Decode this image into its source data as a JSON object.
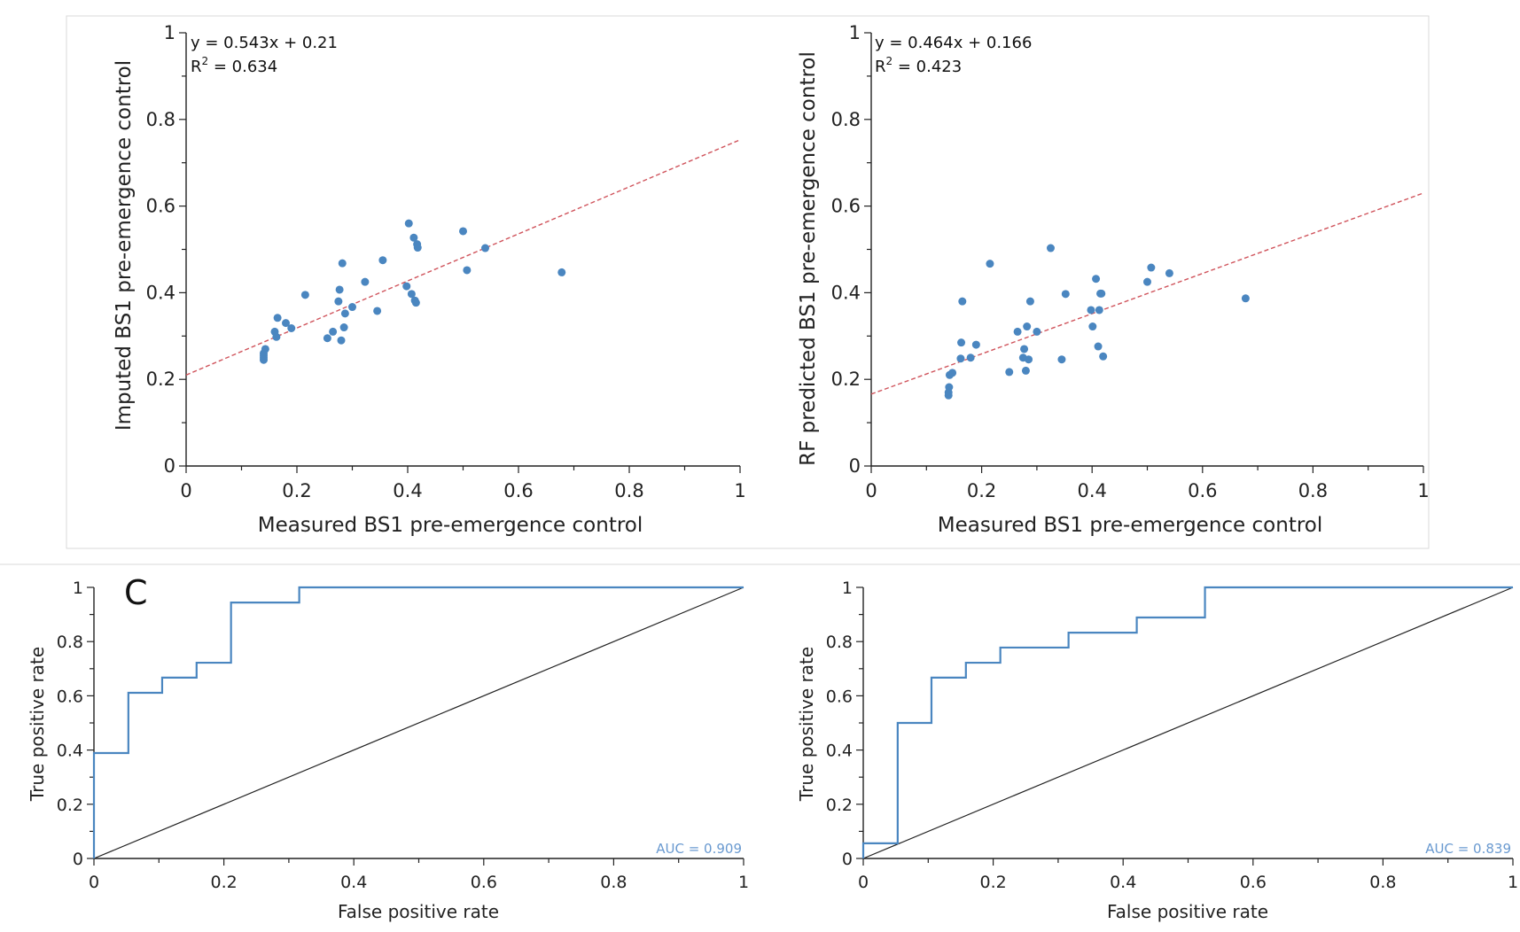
{
  "colors": {
    "points": "#4a86c0",
    "fit_line": "#d0545c",
    "roc": "#4a86c0",
    "diagonal": "#222222",
    "auc_text": "#6a9ad0",
    "frame": "#d9d9d9"
  },
  "panel_label": "C",
  "chart_data": [
    {
      "type": "scatter",
      "xlabel": "Measured BS1 pre-emergence control",
      "ylabel": "Imputed BS1 pre-emergence control",
      "xlim": [
        0,
        1
      ],
      "ylim": [
        0,
        1
      ],
      "x_ticks": [
        "0",
        "0.2",
        "0.4",
        "0.6",
        "0.8",
        "1"
      ],
      "y_ticks": [
        "0",
        "0.2",
        "0.4",
        "0.6",
        "0.8",
        "1"
      ],
      "equation": "y = 0.543x + 0.21",
      "r2_prefix": "R",
      "r2_sup": "2",
      "r2_value": " = 0.634",
      "fit": {
        "slope": 0.543,
        "intercept": 0.21
      },
      "points": [
        [
          0.14,
          0.245
        ],
        [
          0.14,
          0.25
        ],
        [
          0.14,
          0.255
        ],
        [
          0.14,
          0.26
        ],
        [
          0.143,
          0.27
        ],
        [
          0.16,
          0.31
        ],
        [
          0.163,
          0.298
        ],
        [
          0.165,
          0.342
        ],
        [
          0.18,
          0.33
        ],
        [
          0.19,
          0.318
        ],
        [
          0.215,
          0.395
        ],
        [
          0.255,
          0.295
        ],
        [
          0.265,
          0.31
        ],
        [
          0.275,
          0.38
        ],
        [
          0.277,
          0.407
        ],
        [
          0.28,
          0.29
        ],
        [
          0.282,
          0.468
        ],
        [
          0.285,
          0.32
        ],
        [
          0.287,
          0.352
        ],
        [
          0.3,
          0.367
        ],
        [
          0.323,
          0.425
        ],
        [
          0.345,
          0.358
        ],
        [
          0.355,
          0.475
        ],
        [
          0.398,
          0.415
        ],
        [
          0.402,
          0.56
        ],
        [
          0.407,
          0.397
        ],
        [
          0.411,
          0.527
        ],
        [
          0.413,
          0.382
        ],
        [
          0.415,
          0.377
        ],
        [
          0.417,
          0.512
        ],
        [
          0.418,
          0.504
        ],
        [
          0.5,
          0.542
        ],
        [
          0.507,
          0.452
        ],
        [
          0.54,
          0.503
        ],
        [
          0.678,
          0.447
        ]
      ]
    },
    {
      "type": "scatter",
      "xlabel": "Measured BS1 pre-emergence control",
      "ylabel": "RF predicted BS1 pre-emergence control",
      "xlim": [
        0,
        1
      ],
      "ylim": [
        0,
        1
      ],
      "x_ticks": [
        "0",
        "0.2",
        "0.4",
        "0.6",
        "0.8",
        "1"
      ],
      "y_ticks": [
        "0",
        "0.2",
        "0.4",
        "0.6",
        "0.8",
        "1"
      ],
      "equation": "y = 0.464x + 0.166",
      "r2_prefix": "R",
      "r2_sup": "2",
      "r2_value": " = 0.423",
      "fit": {
        "slope": 0.464,
        "intercept": 0.166
      },
      "points": [
        [
          0.14,
          0.163
        ],
        [
          0.14,
          0.17
        ],
        [
          0.141,
          0.182
        ],
        [
          0.142,
          0.21
        ],
        [
          0.147,
          0.215
        ],
        [
          0.162,
          0.248
        ],
        [
          0.163,
          0.285
        ],
        [
          0.165,
          0.38
        ],
        [
          0.18,
          0.25
        ],
        [
          0.19,
          0.28
        ],
        [
          0.215,
          0.467
        ],
        [
          0.25,
          0.217
        ],
        [
          0.265,
          0.31
        ],
        [
          0.275,
          0.25
        ],
        [
          0.277,
          0.27
        ],
        [
          0.28,
          0.22
        ],
        [
          0.282,
          0.322
        ],
        [
          0.285,
          0.246
        ],
        [
          0.288,
          0.38
        ],
        [
          0.3,
          0.31
        ],
        [
          0.325,
          0.503
        ],
        [
          0.345,
          0.246
        ],
        [
          0.352,
          0.397
        ],
        [
          0.398,
          0.36
        ],
        [
          0.401,
          0.322
        ],
        [
          0.407,
          0.432
        ],
        [
          0.411,
          0.276
        ],
        [
          0.413,
          0.36
        ],
        [
          0.415,
          0.398
        ],
        [
          0.417,
          0.398
        ],
        [
          0.42,
          0.253
        ],
        [
          0.5,
          0.425
        ],
        [
          0.507,
          0.458
        ],
        [
          0.54,
          0.445
        ],
        [
          0.678,
          0.387
        ]
      ]
    },
    {
      "type": "line",
      "xlabel": "False positive rate",
      "ylabel": "True positive rate",
      "xlim": [
        0,
        1
      ],
      "ylim": [
        0,
        1
      ],
      "x_ticks": [
        "0",
        "0.2",
        "0.4",
        "0.6",
        "0.8",
        "1"
      ],
      "y_ticks": [
        "0",
        "0.2",
        "0.4",
        "0.6",
        "0.8",
        "1"
      ],
      "auc_label": "AUC = 0.909",
      "series": [
        {
          "x": [
            0,
            0,
            0.053,
            0.053,
            0.105,
            0.105,
            0.158,
            0.158,
            0.211,
            0.211,
            0.316,
            0.316,
            1
          ],
          "y": [
            0,
            0.389,
            0.389,
            0.611,
            0.611,
            0.667,
            0.667,
            0.722,
            0.722,
            0.944,
            0.944,
            1,
            1
          ]
        },
        {
          "x": [
            0,
            1
          ],
          "y": [
            0,
            1
          ]
        }
      ]
    },
    {
      "type": "line",
      "xlabel": "False positive rate",
      "ylabel": "True positive rate",
      "xlim": [
        0,
        1
      ],
      "ylim": [
        0,
        1
      ],
      "x_ticks": [
        "0",
        "0.2",
        "0.4",
        "0.6",
        "0.8",
        "1"
      ],
      "y_ticks": [
        "0",
        "0.2",
        "0.4",
        "0.6",
        "0.8",
        "1"
      ],
      "auc_label": "AUC = 0.839",
      "series": [
        {
          "x": [
            0,
            0,
            0.053,
            0.053,
            0.105,
            0.105,
            0.158,
            0.158,
            0.211,
            0.211,
            0.316,
            0.316,
            0.421,
            0.421,
            0.526,
            0.526,
            1
          ],
          "y": [
            0,
            0.056,
            0.056,
            0.5,
            0.5,
            0.667,
            0.667,
            0.722,
            0.722,
            0.778,
            0.778,
            0.833,
            0.833,
            0.889,
            0.889,
            1,
            1
          ]
        },
        {
          "x": [
            0,
            1
          ],
          "y": [
            0,
            1
          ]
        }
      ]
    }
  ]
}
